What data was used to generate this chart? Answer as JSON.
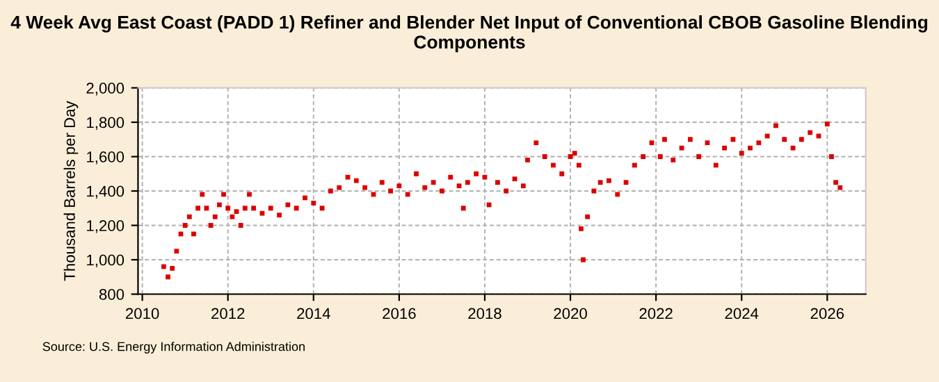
{
  "chart_data": {
    "type": "scatter",
    "title": "4 Week Avg East Coast (PADD 1) Refiner and Blender Net Input of Conventional CBOB Gasoline Blending Components",
    "ylabel": "Thousand Barrels per Day",
    "annotations": [
      "Source: U.S. Energy Information Administration"
    ],
    "xlim": [
      2009.9,
      2026.9
    ],
    "xticks": [
      2010,
      2012,
      2014,
      2016,
      2018,
      2020,
      2022,
      2024,
      2026
    ],
    "ylim": [
      800,
      2000
    ],
    "yticks": [
      {
        "value": 800,
        "label": "800"
      },
      {
        "value": 1000,
        "label": "1,000"
      },
      {
        "value": 1200,
        "label": "1,200"
      },
      {
        "value": 1400,
        "label": "1,400"
      },
      {
        "value": 1600,
        "label": "1,600"
      },
      {
        "value": 1800,
        "label": "1,800"
      },
      {
        "value": 2000,
        "label": "2,000"
      }
    ],
    "grid": true,
    "marker": "square",
    "series": [
      {
        "color": "#dd0000",
        "x": [
          2010.5,
          2010.6,
          2010.7,
          2010.8,
          2010.9,
          2011.0,
          2011.1,
          2011.2,
          2011.3,
          2011.4,
          2011.5,
          2011.6,
          2011.7,
          2011.8,
          2011.9,
          2012.0,
          2012.1,
          2012.2,
          2012.3,
          2012.4,
          2012.5,
          2012.6,
          2012.8,
          2013.0,
          2013.2,
          2013.4,
          2013.6,
          2013.8,
          2014.0,
          2014.2,
          2014.4,
          2014.6,
          2014.8,
          2015.0,
          2015.2,
          2015.4,
          2015.6,
          2015.8,
          2016.0,
          2016.2,
          2016.4,
          2016.6,
          2016.8,
          2017.0,
          2017.2,
          2017.4,
          2017.5,
          2017.6,
          2017.8,
          2018.0,
          2018.1,
          2018.3,
          2018.5,
          2018.7,
          2018.9,
          2019.0,
          2019.2,
          2019.4,
          2019.6,
          2019.8,
          2020.0,
          2020.1,
          2020.2,
          2020.25,
          2020.3,
          2020.4,
          2020.55,
          2020.7,
          2020.9,
          2021.1,
          2021.3,
          2021.5,
          2021.7,
          2021.9,
          2022.1,
          2022.2,
          2022.4,
          2022.6,
          2022.8,
          2023.0,
          2023.2,
          2023.4,
          2023.6,
          2023.8,
          2024.0,
          2024.2,
          2024.4,
          2024.6,
          2024.8,
          2025.0,
          2025.2,
          2025.4,
          2025.6,
          2025.8,
          2026.0,
          2026.1,
          2026.2,
          2026.3
        ],
        "values": [
          960,
          900,
          950,
          1050,
          1150,
          1200,
          1250,
          1150,
          1300,
          1380,
          1300,
          1200,
          1250,
          1320,
          1380,
          1300,
          1250,
          1280,
          1200,
          1300,
          1380,
          1300,
          1270,
          1300,
          1260,
          1320,
          1300,
          1360,
          1330,
          1300,
          1400,
          1420,
          1480,
          1460,
          1420,
          1380,
          1450,
          1400,
          1430,
          1380,
          1500,
          1420,
          1450,
          1400,
          1480,
          1430,
          1300,
          1450,
          1500,
          1480,
          1320,
          1450,
          1400,
          1470,
          1430,
          1580,
          1680,
          1600,
          1550,
          1500,
          1600,
          1620,
          1550,
          1180,
          1000,
          1250,
          1400,
          1450,
          1460,
          1380,
          1450,
          1550,
          1600,
          1680,
          1600,
          1700,
          1580,
          1650,
          1700,
          1600,
          1680,
          1550,
          1650,
          1700,
          1620,
          1650,
          1680,
          1720,
          1780,
          1700,
          1650,
          1700,
          1740,
          1720,
          1790,
          1600,
          1450,
          1420
        ]
      }
    ]
  }
}
